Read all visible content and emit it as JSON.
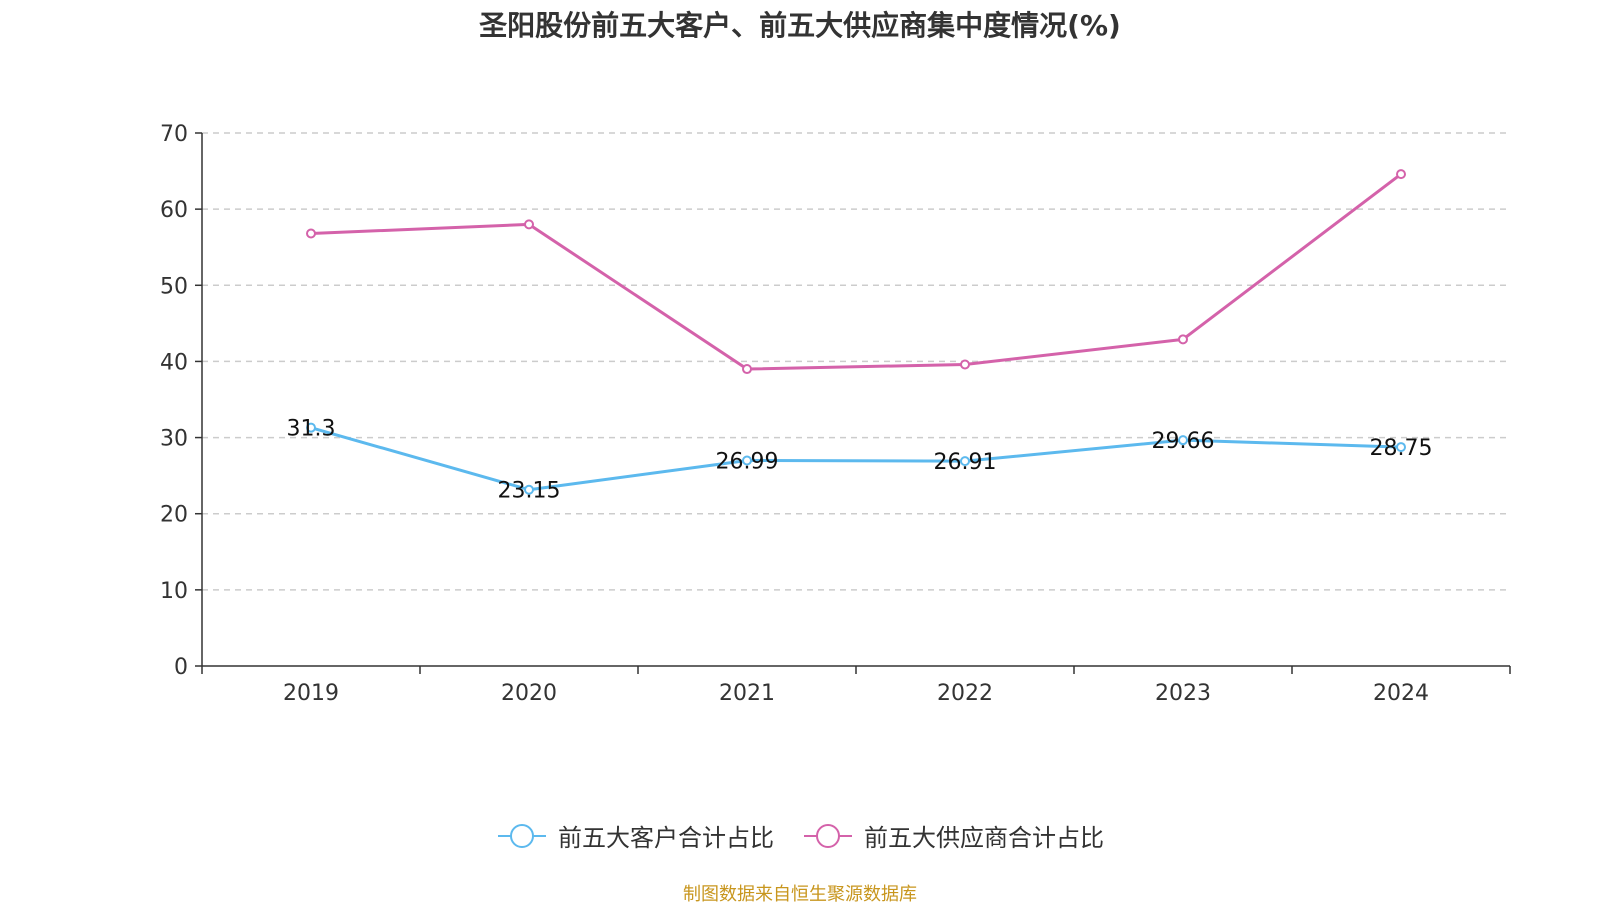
{
  "source_label": "制图数据来自恒生聚源数据库",
  "colors": {
    "series_customers": "#5cb9ee",
    "series_suppliers": "#d462aa",
    "source_text": "#c8961e",
    "axis": "#333333",
    "grid": "#cccccc"
  },
  "chart_data": {
    "type": "line",
    "title": "圣阳股份前五大客户、前五大供应商集中度情况(%)",
    "xlabel": "",
    "ylabel": "",
    "categories": [
      "2019",
      "2020",
      "2021",
      "2022",
      "2023",
      "2024"
    ],
    "ylim": [
      0,
      70
    ],
    "yticks": [
      0,
      10,
      20,
      30,
      40,
      50,
      60,
      70
    ],
    "ytick_labels": [
      "0",
      "10",
      "20",
      "30",
      "40",
      "50",
      "60",
      "70"
    ],
    "grid": true,
    "legend_position": "bottom-center",
    "series": [
      {
        "name": "前五大客户合计占比",
        "values": [
          31.3,
          23.15,
          26.99,
          26.91,
          29.66,
          28.75
        ],
        "data_labels": [
          "31.3",
          "23.15",
          "26.99",
          "26.91",
          "29.66",
          "28.75"
        ],
        "color": "#5cb9ee",
        "show_labels": true
      },
      {
        "name": "前五大供应商合计占比",
        "values": [
          56.8,
          58.0,
          39.0,
          39.6,
          42.9,
          64.6
        ],
        "color": "#d462aa",
        "show_labels": false
      }
    ]
  }
}
